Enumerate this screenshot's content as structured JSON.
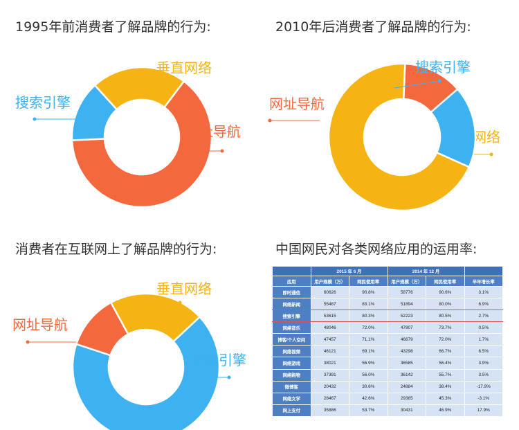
{
  "titles": {
    "t1": "1995年前消费者了解品牌的行为:",
    "t2": "2010年后消费者了解品牌的行为:",
    "t3": "消费者在互联网上了解品牌的行为:",
    "t4": "中国网民对各类网络应用的运用率:"
  },
  "colors": {
    "nav": "#f4683d",
    "search": "#3eb1f0",
    "vertical": "#f5b314"
  },
  "chart_data": [
    {
      "type": "pie",
      "subtype": "donut",
      "title": "1995年前消费者了解品牌的行为:",
      "slices": [
        {
          "label": "网址导航",
          "value": 64,
          "color": "#f4683d"
        },
        {
          "label": "搜索引擎",
          "value": 14,
          "color": "#3eb1f0"
        },
        {
          "label": "垂直网络",
          "value": 22,
          "color": "#f5b314"
        }
      ]
    },
    {
      "type": "pie",
      "subtype": "donut",
      "title": "2010年后消费者了解品牌的行为:",
      "slices": [
        {
          "label": "垂直网络",
          "value": 69,
          "color": "#f5b314"
        },
        {
          "label": "网址导航",
          "value": 13,
          "color": "#f4683d"
        },
        {
          "label": "搜索引擎",
          "value": 18,
          "color": "#3eb1f0"
        }
      ]
    },
    {
      "type": "pie",
      "subtype": "donut",
      "title": "消费者在互联网上了解品牌的行为:",
      "slices": [
        {
          "label": "搜索引擎",
          "value": 67,
          "color": "#3eb1f0"
        },
        {
          "label": "网址导航",
          "value": 12,
          "color": "#f4683d"
        },
        {
          "label": "垂直网络",
          "value": 21,
          "color": "#f5b314"
        }
      ]
    },
    {
      "type": "table",
      "title": "中国网民对各类网络应用的运用率:",
      "group_headers": [
        "2015 年 6 月",
        "2014 年 12 月"
      ],
      "columns": [
        "应用",
        "用户规模（万）",
        "网民使用率",
        "用户规模（万）",
        "网民使用率",
        "半年增长率"
      ],
      "highlighted_rows": [
        "网络新闻",
        "搜索引擎"
      ],
      "rows": [
        [
          "即时通信",
          "60626",
          "90.8%",
          "58776",
          "90.6%",
          "3.1%"
        ],
        [
          "网络新闻",
          "55467",
          "83.1%",
          "51894",
          "80.0%",
          "6.9%"
        ],
        [
          "搜索引擎",
          "53615",
          "80.3%",
          "52223",
          "80.5%",
          "2.7%"
        ],
        [
          "网络音乐",
          "48046",
          "72.0%",
          "47807",
          "73.7%",
          "0.5%"
        ],
        [
          "博客/个人空间",
          "47457",
          "71.1%",
          "46679",
          "72.0%",
          "1.7%"
        ],
        [
          "网络视频",
          "46121",
          "69.1%",
          "43298",
          "66.7%",
          "6.5%"
        ],
        [
          "网络游戏",
          "38021",
          "56.9%",
          "36585",
          "56.4%",
          "3.9%"
        ],
        [
          "网络购物",
          "37391",
          "56.0%",
          "36142",
          "55.7%",
          "3.5%"
        ],
        [
          "微博客",
          "20432",
          "30.6%",
          "24884",
          "38.4%",
          "-17.9%"
        ],
        [
          "网络文学",
          "28467",
          "42.6%",
          "29385",
          "45.3%",
          "-3.1%"
        ],
        [
          "网上支付",
          "35886",
          "53.7%",
          "30431",
          "46.9%",
          "17.9%"
        ]
      ]
    }
  ]
}
